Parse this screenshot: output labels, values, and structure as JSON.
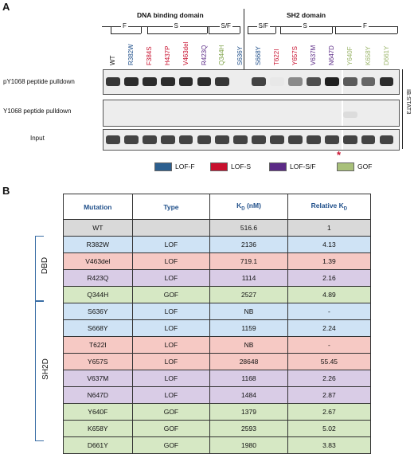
{
  "panels": {
    "a": "A",
    "b": "B"
  },
  "domains": {
    "dna": "DNA binding domain",
    "sh2": "SH2 domain"
  },
  "subdomains": [
    {
      "label": "F"
    },
    {
      "label": "S"
    },
    {
      "label": "S/F"
    },
    {
      "label": "S/F"
    },
    {
      "label": "S"
    },
    {
      "label": "F"
    }
  ],
  "lanes": [
    {
      "label": "WT",
      "color": "#111111"
    },
    {
      "label": "R382W",
      "color": "#1f4f8a"
    },
    {
      "label": "F384S",
      "color": "#c8102e"
    },
    {
      "label": "H437P",
      "color": "#c8102e"
    },
    {
      "label": "V463del",
      "color": "#c8102e"
    },
    {
      "label": "R423Q",
      "color": "#5b2a86"
    },
    {
      "label": "Q344H",
      "color": "#7fa34a"
    },
    {
      "label": "S636Y",
      "color": "#1f4f8a"
    },
    {
      "label": "S668Y",
      "color": "#1f4f8a"
    },
    {
      "label": "T622I",
      "color": "#c8102e"
    },
    {
      "label": "Y657S",
      "color": "#c8102e"
    },
    {
      "label": "V637M",
      "color": "#5b2a86"
    },
    {
      "label": "N647D",
      "color": "#5b2a86"
    },
    {
      "label": "Y640F",
      "color": "#9bb56a"
    },
    {
      "label": "K658Y",
      "color": "#9bb56a"
    },
    {
      "label": "D661Y",
      "color": "#9bb56a"
    }
  ],
  "blot_rows": {
    "pY": "pY1068 peptide pulldown",
    "Y": "Y1068 peptide pulldown",
    "input": "Input"
  },
  "blot_side_label": "IB:STAT3",
  "asterisk": "*",
  "legend": [
    {
      "label": "LOF-F",
      "color": "#2c5f8f"
    },
    {
      "label": "LOF-S",
      "color": "#c8102e"
    },
    {
      "label": "LOF-S/F",
      "color": "#5b2a86"
    },
    {
      "label": "GOF",
      "color": "#a8c07a"
    }
  ],
  "table": {
    "headers": {
      "mutation": "Mutation",
      "type": "Type",
      "kd": "K",
      "kd_sub": "D",
      "kd_unit": " (nM)",
      "rel": "Relative K",
      "rel_sub": "D"
    },
    "groups": {
      "dbd": "DBD",
      "sh2d": "SH2D"
    },
    "rows": [
      {
        "mutation": "WT",
        "type": "",
        "kd": "516.6",
        "rel": "1",
        "bg": "#d9d9d9"
      },
      {
        "mutation": "R382W",
        "type": "LOF",
        "kd": "2136",
        "rel": "4.13",
        "bg": "#cfe3f5"
      },
      {
        "mutation": "V463del",
        "type": "LOF",
        "kd": "719.1",
        "rel": "1.39",
        "bg": "#f6c9c4"
      },
      {
        "mutation": "R423Q",
        "type": "LOF",
        "kd": "1114",
        "rel": "2.16",
        "bg": "#d9cce6"
      },
      {
        "mutation": "Q344H",
        "type": "GOF",
        "kd": "2527",
        "rel": "4.89",
        "bg": "#d6e8c4"
      },
      {
        "mutation": "S636Y",
        "type": "LOF",
        "kd": "NB",
        "rel": "-",
        "bg": "#cfe3f5"
      },
      {
        "mutation": "S668Y",
        "type": "LOF",
        "kd": "1159",
        "rel": "2.24",
        "bg": "#cfe3f5"
      },
      {
        "mutation": "T622I",
        "type": "LOF",
        "kd": "NB",
        "rel": "-",
        "bg": "#f6c9c4"
      },
      {
        "mutation": "Y657S",
        "type": "LOF",
        "kd": "28648",
        "rel": "55.45",
        "bg": "#f6c9c4"
      },
      {
        "mutation": "V637M",
        "type": "LOF",
        "kd": "1168",
        "rel": "2.26",
        "bg": "#d9cce6"
      },
      {
        "mutation": "N647D",
        "type": "LOF",
        "kd": "1484",
        "rel": "2.87",
        "bg": "#d9cce6"
      },
      {
        "mutation": "Y640F",
        "type": "GOF",
        "kd": "1379",
        "rel": "2.67",
        "bg": "#d6e8c4"
      },
      {
        "mutation": "K658Y",
        "type": "GOF",
        "kd": "2593",
        "rel": "5.02",
        "bg": "#d6e8c4"
      },
      {
        "mutation": "D661Y",
        "type": "GOF",
        "kd": "1980",
        "rel": "3.83",
        "bg": "#d6e8c4"
      }
    ]
  },
  "band_intensity": {
    "pY": [
      0.85,
      0.9,
      0.9,
      0.9,
      0.9,
      0.9,
      0.85,
      0.0,
      0.8,
      0.1,
      0.5,
      0.75,
      0.95,
      0.7,
      0.65,
      0.9
    ],
    "Y": [
      0,
      0,
      0,
      0,
      0,
      0,
      0,
      0,
      0,
      0,
      0,
      0,
      0,
      0.15,
      0,
      0
    ],
    "input": [
      0.8,
      0.8,
      0.8,
      0.8,
      0.8,
      0.8,
      0.8,
      0.8,
      0.8,
      0.8,
      0.8,
      0.8,
      0.8,
      0.8,
      0.8,
      0.8
    ]
  }
}
